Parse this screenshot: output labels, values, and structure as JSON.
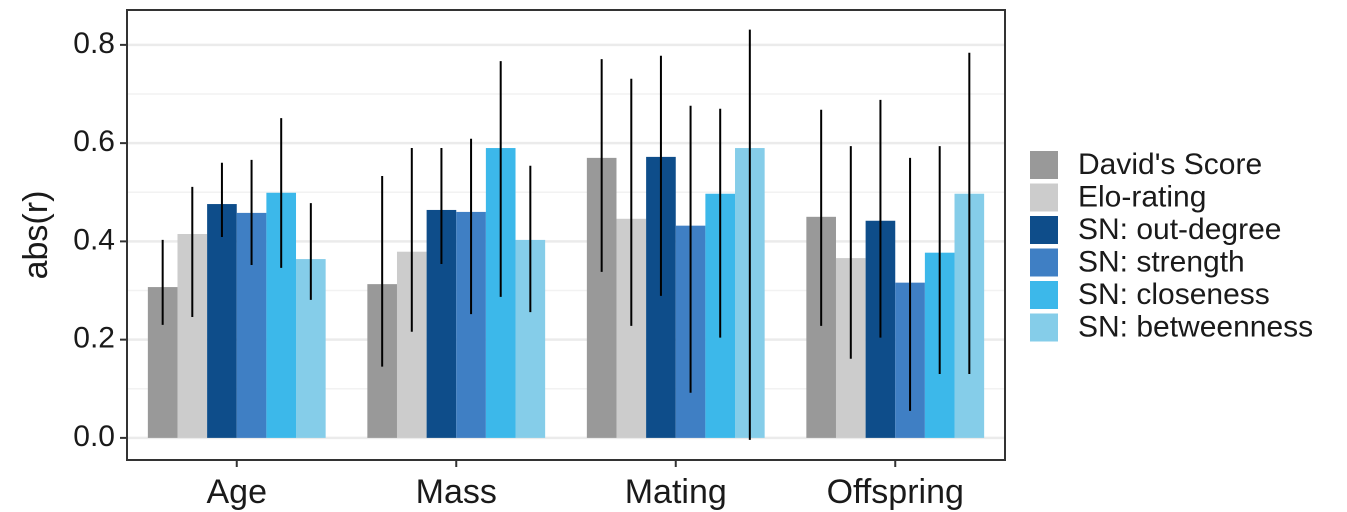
{
  "chart_data": {
    "type": "bar",
    "y_label": "abs(r)",
    "categories": [
      "Age",
      "Mass",
      "Mating",
      "Offspring"
    ],
    "series": [
      {
        "name": "David's Score",
        "color": "#999999",
        "values": [
          0.307,
          0.313,
          0.57,
          0.45
        ],
        "lower": [
          0.23,
          0.145,
          0.338,
          0.228
        ],
        "upper": [
          0.403,
          0.533,
          0.771,
          0.668
        ]
      },
      {
        "name": "Elo-rating",
        "color": "#cccccc",
        "values": [
          0.415,
          0.379,
          0.446,
          0.366
        ],
        "lower": [
          0.246,
          0.216,
          0.228,
          0.161
        ],
        "upper": [
          0.511,
          0.59,
          0.731,
          0.594
        ]
      },
      {
        "name": "SN: out-degree",
        "color": "#0e4d8a",
        "values": [
          0.476,
          0.464,
          0.572,
          0.442
        ],
        "lower": [
          0.409,
          0.354,
          0.289,
          0.204
        ],
        "upper": [
          0.56,
          0.59,
          0.778,
          0.688
        ]
      },
      {
        "name": "SN: strength",
        "color": "#3f7fc4",
        "values": [
          0.458,
          0.46,
          0.432,
          0.316
        ],
        "lower": [
          0.352,
          0.252,
          0.092,
          0.055
        ],
        "upper": [
          0.566,
          0.609,
          0.676,
          0.57
        ]
      },
      {
        "name": "SN: closeness",
        "color": "#3cb8ea",
        "values": [
          0.499,
          0.59,
          0.497,
          0.377
        ],
        "lower": [
          0.346,
          0.287,
          0.204,
          0.13
        ],
        "upper": [
          0.651,
          0.767,
          0.67,
          0.594
        ]
      },
      {
        "name": "SN: betweenness",
        "color": "#85cde9",
        "values": [
          0.364,
          0.403,
          0.59,
          0.497
        ],
        "lower": [
          0.281,
          0.256,
          -0.004,
          0.13
        ],
        "upper": [
          0.478,
          0.554,
          0.831,
          0.784
        ]
      }
    ],
    "ylim": [
      -0.045,
      0.871
    ],
    "yticks": [
      {
        "value": 0,
        "label": "0.0"
      },
      0.2,
      0.4,
      0.6,
      0.8
    ],
    "grid": true,
    "legend": "right"
  }
}
